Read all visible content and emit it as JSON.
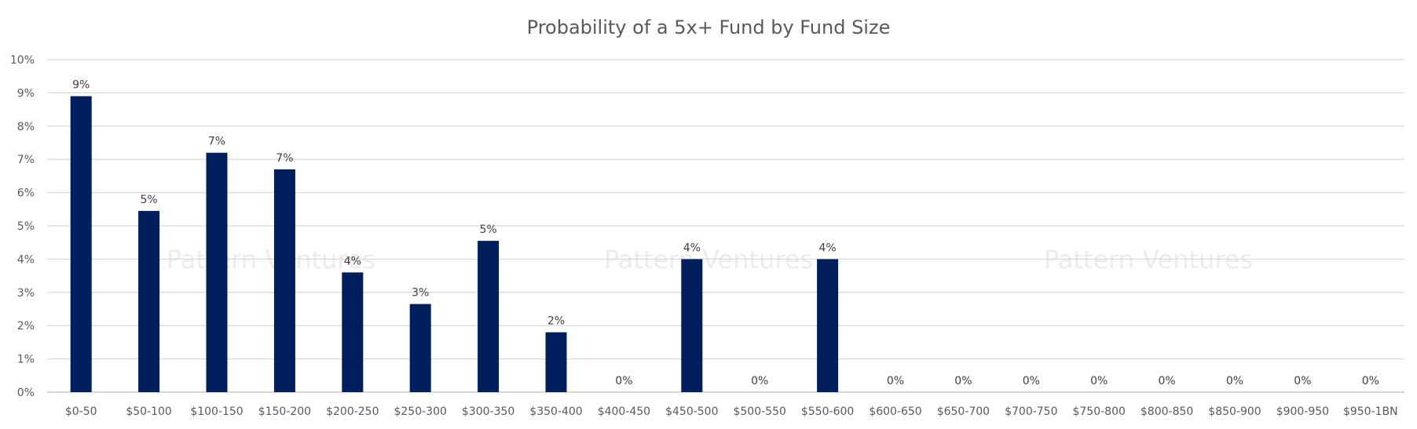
{
  "chart_data": {
    "type": "bar",
    "title": "Probability of a 5x+ Fund by Fund Size",
    "xlabel": "",
    "ylabel": "",
    "categories": [
      "$0-50",
      "$50-100",
      "$100-150",
      "$150-200",
      "$200-250",
      "$250-300",
      "$300-350",
      "$350-400",
      "$400-450",
      "$450-500",
      "$500-550",
      "$550-600",
      "$600-650",
      "$650-700",
      "$700-750",
      "$750-800",
      "$800-850",
      "$850-900",
      "$900-950",
      "$950-1BN"
    ],
    "values": [
      8.9,
      5.45,
      7.2,
      6.7,
      3.6,
      2.65,
      4.55,
      1.8,
      0,
      4.0,
      0,
      4.0,
      0,
      0,
      0,
      0,
      0,
      0,
      0,
      0
    ],
    "data_labels": [
      "9%",
      "5%",
      "7%",
      "7%",
      "4%",
      "3%",
      "5%",
      "2%",
      "0%",
      "4%",
      "0%",
      "4%",
      "0%",
      "0%",
      "0%",
      "0%",
      "0%",
      "0%",
      "0%",
      "0%"
    ],
    "ylim": [
      0,
      10
    ],
    "yticks": [
      "0%",
      "1%",
      "2%",
      "3%",
      "4%",
      "5%",
      "6%",
      "7%",
      "8%",
      "9%",
      "10%"
    ],
    "grid": true,
    "legend": "none",
    "bar_color": "#001f5c",
    "watermark": "Pattern Ventures"
  }
}
